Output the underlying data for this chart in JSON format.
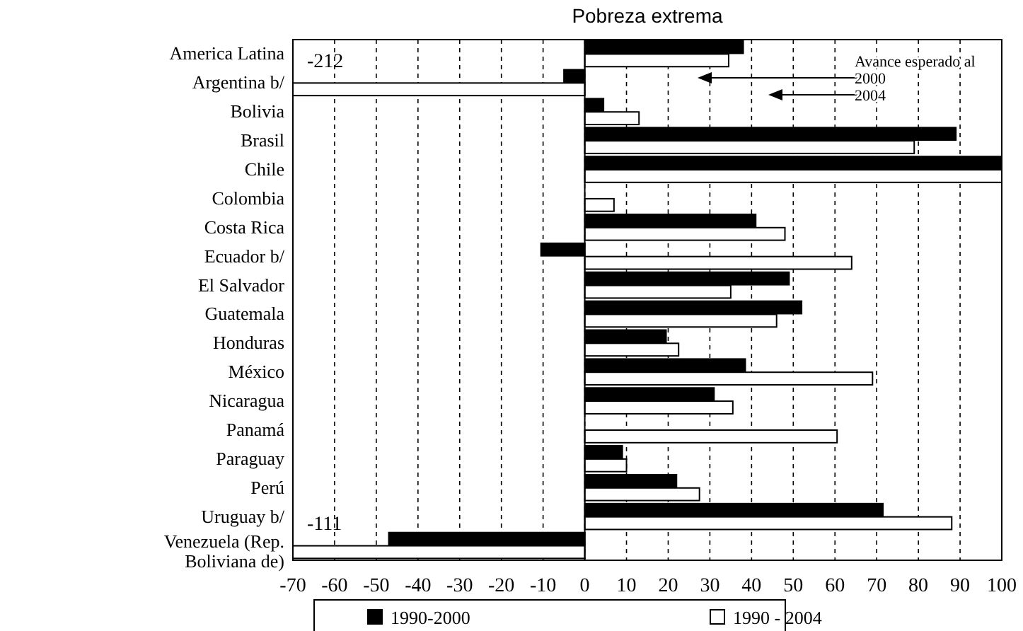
{
  "chart_data": {
    "type": "bar",
    "orientation": "horizontal",
    "title": "Pobreza extrema",
    "categories": [
      "America Latina",
      "Argentina b/",
      "Bolivia",
      "Brasil",
      "Chile",
      "Colombia",
      "Costa Rica",
      "Ecuador b/",
      "El Salvador",
      "Guatemala",
      "Honduras",
      "México",
      "Nicaragua",
      "Panamá",
      "Paraguay",
      "Perú",
      "Uruguay b/",
      "Venezuela (Rep. Boliviana de)"
    ],
    "series": [
      {
        "name": "1990-2000",
        "color": "#000000",
        "values": [
          38,
          -5,
          4.5,
          89,
          100,
          null,
          41,
          -10.5,
          49,
          52,
          19.5,
          38.5,
          31,
          null,
          9,
          22,
          71.5,
          -47
        ]
      },
      {
        "name": "1990 - 2004",
        "color": "#ffffff",
        "values": [
          34.5,
          -70,
          13,
          79,
          100,
          7,
          48,
          64,
          35,
          46,
          22.5,
          69,
          35.5,
          60.5,
          10,
          27.5,
          88,
          -70
        ]
      }
    ],
    "xlim": [
      -70,
      100
    ],
    "xticks": [
      -70,
      -60,
      -50,
      -40,
      -30,
      -20,
      -10,
      0,
      10,
      20,
      30,
      40,
      50,
      60,
      70,
      80,
      90,
      100
    ],
    "grid": "x",
    "legend": "bottom",
    "annotations": [
      {
        "text": "-212",
        "x": -70,
        "y": "Argentina b/"
      },
      {
        "text": "-111",
        "x": -70,
        "y": "Venezuela (Rep. Boliviana de)"
      },
      "Avance esperado al 2000",
      "2004"
    ]
  }
}
